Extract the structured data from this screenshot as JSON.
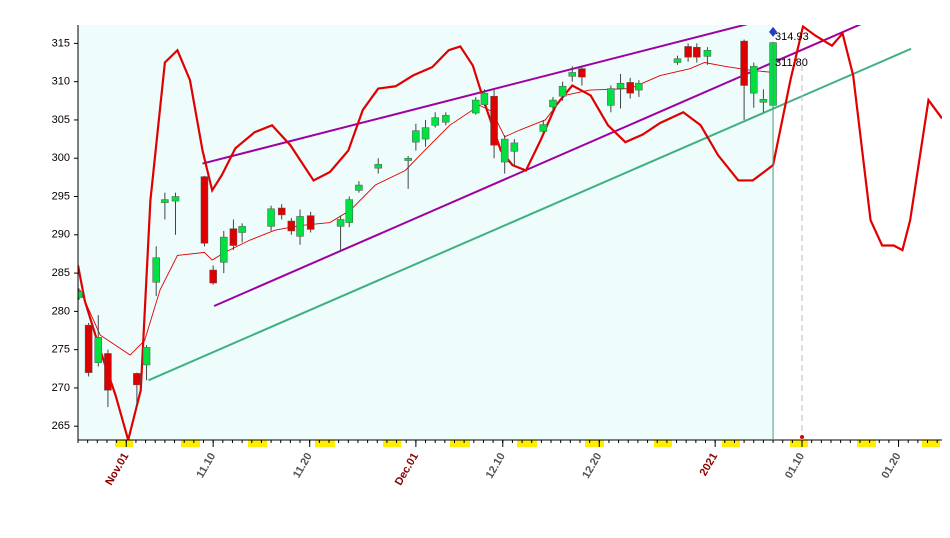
{
  "chart_data": {
    "type": "candlestick",
    "xlim": [
      -5,
      84.5
    ],
    "ylim": [
      263.2,
      317.4
    ],
    "xticks": [
      {
        "value": 0,
        "label": "Nov.01",
        "color": "#8b0000"
      },
      {
        "value": 9,
        "label": "11.10",
        "color": "#555555"
      },
      {
        "value": 19,
        "label": "11.20",
        "color": "#555555"
      },
      {
        "value": 30,
        "label": "Dec.01",
        "color": "#8b0000"
      },
      {
        "value": 39,
        "label": "12.10",
        "color": "#555555"
      },
      {
        "value": 49,
        "label": "12.20",
        "color": "#555555"
      },
      {
        "value": 61,
        "label": "2021",
        "color": "#8b0000"
      },
      {
        "value": 70,
        "label": "01.10",
        "color": "#555555"
      },
      {
        "value": 80,
        "label": "01.20",
        "color": "#555555"
      }
    ],
    "yticks": [
      265,
      270,
      275,
      280,
      285,
      290,
      295,
      300,
      305,
      310,
      315
    ],
    "up_color": "#00e040",
    "down_color": "#dd0000",
    "x": [
      -4.9,
      -3.9,
      -2.9,
      -1.9,
      1.1,
      2.1,
      3.1,
      4.0,
      5.1,
      8.1,
      9.0,
      10.1,
      11.1,
      12.0,
      15.0,
      16.1,
      17.1,
      18.0,
      19.1,
      22.2,
      23.1,
      24.1,
      26.1,
      29.2,
      30.0,
      31.0,
      32.0,
      33.1,
      36.2,
      37.1,
      38.1,
      39.2,
      40.2,
      43.2,
      44.2,
      45.2,
      46.2,
      47.2,
      50.2,
      51.2,
      52.2,
      53.1,
      57.1,
      58.2,
      59.1,
      60.2,
      64.0,
      65.0,
      66.0,
      67.0
    ],
    "open": [
      281.8,
      278.2,
      273.3,
      274.5,
      271.9,
      273.0,
      283.8,
      294.2,
      294.4,
      297.6,
      285.4,
      286.4,
      290.8,
      290.3,
      291.1,
      293.5,
      291.8,
      289.8,
      292.5,
      291.1,
      291.6,
      295.8,
      298.7,
      299.7,
      302.1,
      302.5,
      304.3,
      304.7,
      305.9,
      307.0,
      308.1,
      299.5,
      300.9,
      303.5,
      306.7,
      308.1,
      310.7,
      311.7,
      306.9,
      309.1,
      309.9,
      308.9,
      312.5,
      314.6,
      314.5,
      313.3,
      315.3,
      308.5,
      307.3,
      306.9
    ],
    "high": [
      283.0,
      278.5,
      279.5,
      275.0,
      272.0,
      275.6,
      288.5,
      295.5,
      295.5,
      297.7,
      286.0,
      290.5,
      292.0,
      291.5,
      293.8,
      294.0,
      292.2,
      293.3,
      293.0,
      292.5,
      295.0,
      297.0,
      300.0,
      300.3,
      304.5,
      305.0,
      306.0,
      306.0,
      308.0,
      309.0,
      309.0,
      303.0,
      302.5,
      305.0,
      308.0,
      310.0,
      312.0,
      312.0,
      309.5,
      311.0,
      310.5,
      310.2,
      313.4,
      315.0,
      315.0,
      314.5,
      315.5,
      312.5,
      309.0,
      315.2
    ],
    "low": [
      281.5,
      271.5,
      272.8,
      267.5,
      267.5,
      271.0,
      282.0,
      292.0,
      290.0,
      288.5,
      283.5,
      285.0,
      288.0,
      289.0,
      290.5,
      292.0,
      290.0,
      288.7,
      290.3,
      287.9,
      291.0,
      295.5,
      298.0,
      296.0,
      301.0,
      301.5,
      304.0,
      304.3,
      305.7,
      306.8,
      300.0,
      298.0,
      299.0,
      303.0,
      306.0,
      307.5,
      310.0,
      309.5,
      306.0,
      306.5,
      307.8,
      308.0,
      312.2,
      312.6,
      312.5,
      312.2,
      305.0,
      306.6,
      306.0,
      306.5
    ],
    "close": [
      282.6,
      272.0,
      276.6,
      269.7,
      270.4,
      275.3,
      287.0,
      294.6,
      295.0,
      288.9,
      283.7,
      289.7,
      288.6,
      291.1,
      293.4,
      292.6,
      290.5,
      292.4,
      290.7,
      292.0,
      294.6,
      296.5,
      299.2,
      300.0,
      303.6,
      304.0,
      305.3,
      305.6,
      307.6,
      308.5,
      301.7,
      302.5,
      302.0,
      304.4,
      307.6,
      309.4,
      311.2,
      310.6,
      309.1,
      309.8,
      308.5,
      309.8,
      313.0,
      313.2,
      313.2,
      314.1,
      309.5,
      312.0,
      307.7,
      315.1
    ],
    "overlays": [
      {
        "color": "#e00000",
        "width": 2.2,
        "x": [
          -5,
          -4.3,
          -2.7,
          -1.1,
          0.2,
          1.5,
          2.5,
          4.0,
          5.3,
          6.6,
          7.9,
          8.9,
          9.9,
          11.3,
          13.3,
          15.1,
          17.0,
          19.4,
          21.1,
          23.0,
          24.5,
          26.1,
          27.9,
          29.7,
          31.7,
          33.4,
          34.6,
          35.9,
          37.2,
          38.8,
          40.0,
          41.4,
          42.9,
          44.5,
          46.2,
          48.1,
          49.9,
          51.7,
          53.5,
          55.3,
          57.7,
          59.5,
          61.3,
          63.4,
          64.9,
          67.0,
          68.8,
          70.1,
          71.4,
          73.1,
          74.2,
          75.3,
          77.1,
          78.3,
          79.5,
          80.4,
          81.2,
          83.1,
          84.5
        ],
        "y": [
          286.0,
          281.4,
          274.9,
          269.0,
          263.2,
          269.7,
          294.5,
          312.5,
          314.1,
          310.2,
          301.0,
          295.8,
          297.8,
          301.3,
          303.4,
          304.3,
          301.7,
          297.1,
          298.2,
          301.0,
          306.3,
          309.1,
          309.4,
          310.8,
          311.9,
          314.1,
          314.6,
          312.1,
          306.9,
          301.0,
          299.1,
          298.4,
          302.3,
          306.9,
          309.5,
          308.2,
          304.3,
          302.1,
          303.1,
          304.6,
          306.0,
          304.3,
          300.4,
          297.1,
          297.1,
          299.1,
          310.2,
          317.2,
          316.0,
          314.7,
          316.3,
          310.8,
          291.9,
          288.6,
          288.6,
          288.0,
          291.9,
          307.6,
          305.2
        ]
      },
      {
        "color": "#e00000",
        "width": 0.9,
        "x": [
          -4.8,
          -2.7,
          0.4,
          1.9,
          3.5,
          5.3,
          8.1,
          8.9,
          10.2,
          12.8,
          15.4,
          18.0,
          21.1,
          23.2,
          25.8,
          28.9,
          30.9,
          33.5,
          36.6,
          37.9,
          39.2,
          40.8,
          43.4,
          45.4,
          48.0,
          52.2,
          55.3,
          58.4,
          59.9,
          62.0,
          64.6,
          67.0
        ],
        "y": [
          282.8,
          276.9,
          274.3,
          276.2,
          282.8,
          287.3,
          287.7,
          286.7,
          287.7,
          289.3,
          290.6,
          291.2,
          291.6,
          293.2,
          296.5,
          298.4,
          301.0,
          304.3,
          306.9,
          306.1,
          302.8,
          303.7,
          305.0,
          308.2,
          308.9,
          309.1,
          310.8,
          311.7,
          312.5,
          312.0,
          311.5,
          311.2
        ]
      }
    ],
    "trend_lines": [
      {
        "color": "#a000a0",
        "x": [
          7.9,
          73.9
        ],
        "y": [
          299.3,
          320.6
        ]
      },
      {
        "color": "#a000a0",
        "x": [
          9.1,
          81.0
        ],
        "y": [
          280.7,
          320.2
        ]
      },
      {
        "color": "#40b080",
        "x": [
          2.3,
          81.3
        ],
        "y": [
          271.0,
          314.3
        ]
      }
    ],
    "annotations": [
      {
        "x": 67,
        "y": 314.93,
        "label": "314.93"
      },
      {
        "x": 67,
        "y": 311.8,
        "label": "311.80"
      }
    ]
  }
}
